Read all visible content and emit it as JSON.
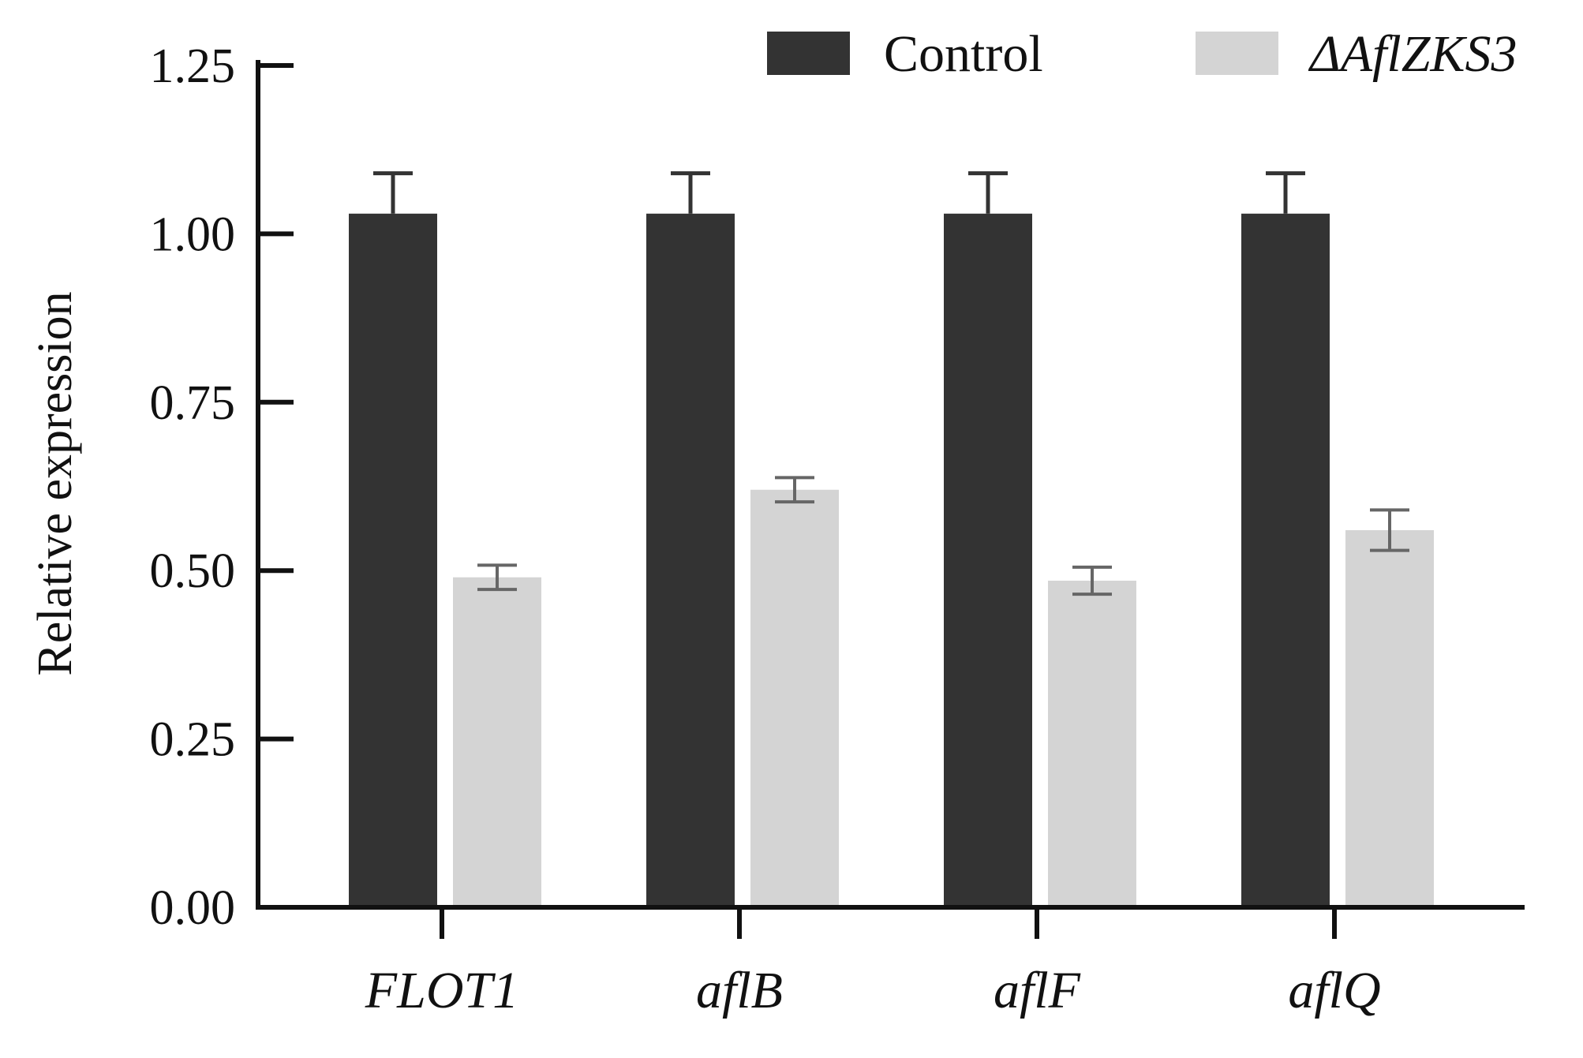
{
  "chart_data": {
    "type": "bar",
    "title": "",
    "xlabel": "",
    "ylabel": "Relative expression",
    "ylim": [
      0,
      1.25
    ],
    "yticks": [
      "0.00",
      "0.25",
      "0.50",
      "0.75",
      "1.00",
      "1.25"
    ],
    "grid": false,
    "legend_position": "top-right",
    "categories": [
      "FLOT1",
      "aflB",
      "aflF",
      "aflQ"
    ],
    "series": [
      {
        "name": "Control",
        "color": "#333333",
        "values": [
          1.03,
          1.03,
          1.03,
          1.03
        ],
        "errors": [
          0.06,
          0.06,
          0.06,
          0.06
        ]
      },
      {
        "name": "ΔAflZKS3",
        "color": "#d4d4d4",
        "values": [
          0.49,
          0.62,
          0.485,
          0.56
        ],
        "errors": [
          0.018,
          0.018,
          0.02,
          0.03
        ]
      }
    ]
  }
}
